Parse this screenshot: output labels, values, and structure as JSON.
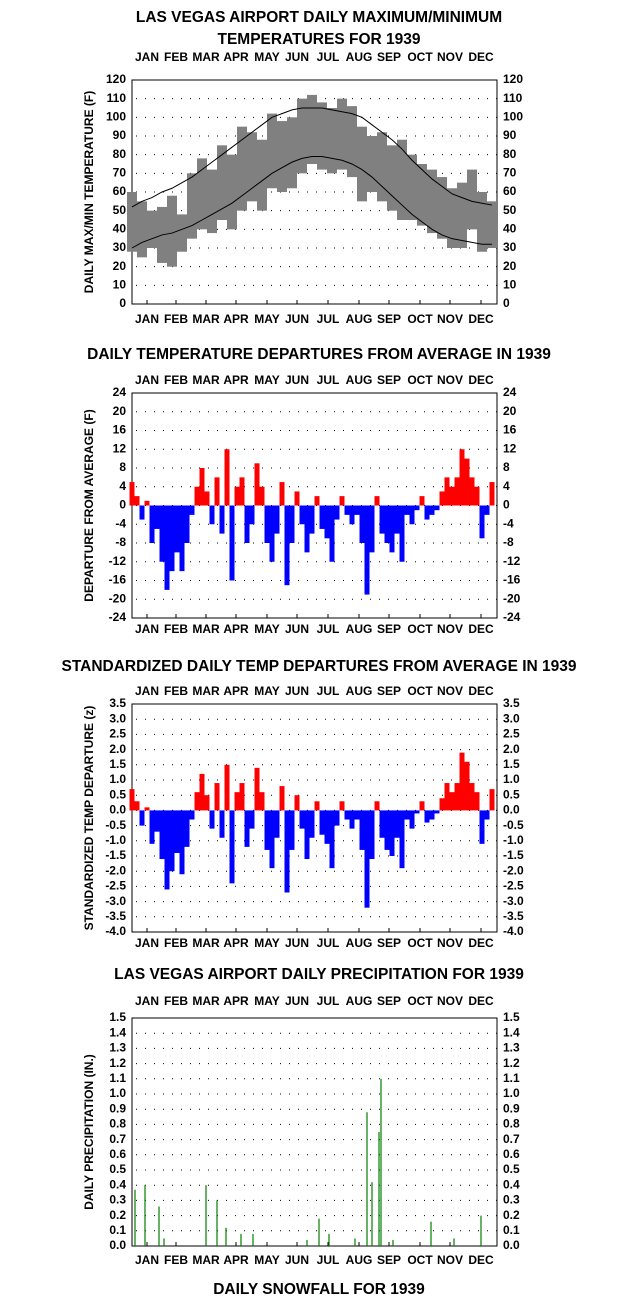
{
  "chart_data": [
    {
      "type": "range",
      "title": [
        "LAS VEGAS AIRPORT DAILY MAXIMUM/MINIMUM",
        "TEMPERATURES FOR 1939"
      ],
      "ylabel": "DAILY MAX/MIN TEMPERATURE (F)",
      "xlim": [
        1,
        366
      ],
      "xticks": [
        {
          "value": 16,
          "label": "JAN"
        },
        {
          "value": 45,
          "label": "FEB"
        },
        {
          "value": 75,
          "label": "MAR"
        },
        {
          "value": 105,
          "label": "APR"
        },
        {
          "value": 136,
          "label": "MAY"
        },
        {
          "value": 166,
          "label": "JUN"
        },
        {
          "value": 197,
          "label": "JUL"
        },
        {
          "value": 228,
          "label": "AUG"
        },
        {
          "value": 258,
          "label": "SEP"
        },
        {
          "value": 289,
          "label": "OCT"
        },
        {
          "value": 319,
          "label": "NOV"
        },
        {
          "value": 350,
          "label": "DEC"
        }
      ],
      "ylim": [
        0,
        120
      ],
      "yticks": [
        0,
        10,
        20,
        30,
        40,
        50,
        60,
        70,
        80,
        90,
        100,
        110,
        120
      ],
      "grid": true,
      "x": [
        1,
        11,
        21,
        31,
        41,
        51,
        61,
        71,
        81,
        91,
        101,
        111,
        121,
        131,
        141,
        151,
        161,
        171,
        181,
        191,
        201,
        211,
        221,
        231,
        241,
        251,
        261,
        271,
        281,
        291,
        301,
        311,
        321,
        331,
        341,
        351,
        361
      ],
      "series": [
        {
          "color": "#808080",
          "values": [
            60,
            55,
            50,
            52,
            58,
            48,
            70,
            78,
            72,
            85,
            80,
            95,
            92,
            88,
            102,
            98,
            100,
            110,
            112,
            108,
            105,
            110,
            106,
            95,
            90,
            92,
            85,
            88,
            80,
            75,
            72,
            68,
            62,
            65,
            72,
            60,
            55
          ]
        },
        {
          "color": "#808080",
          "values": [
            28,
            25,
            30,
            22,
            20,
            28,
            35,
            40,
            38,
            45,
            40,
            50,
            55,
            50,
            62,
            60,
            62,
            70,
            75,
            72,
            70,
            72,
            68,
            55,
            60,
            55,
            50,
            45,
            45,
            42,
            38,
            35,
            30,
            30,
            40,
            28,
            30
          ]
        }
      ],
      "normals": [
        {
          "color": "#000000",
          "values": [
            52,
            55,
            57,
            60,
            62,
            65,
            68,
            72,
            76,
            80,
            84,
            88,
            92,
            96,
            100,
            102,
            104,
            105,
            105,
            105,
            104,
            103,
            102,
            100,
            96,
            92,
            88,
            83,
            77,
            72,
            67,
            63,
            59,
            57,
            55,
            54,
            53
          ]
        },
        {
          "color": "#000000",
          "values": [
            30,
            33,
            35,
            37,
            38,
            40,
            42,
            45,
            48,
            51,
            54,
            58,
            62,
            66,
            70,
            73,
            76,
            78,
            79,
            79,
            78,
            77,
            75,
            72,
            68,
            63,
            58,
            53,
            48,
            44,
            40,
            37,
            35,
            34,
            33,
            32,
            32
          ]
        }
      ]
    },
    {
      "type": "bar",
      "title": "DAILY TEMPERATURE DEPARTURES FROM AVERAGE IN 1939",
      "ylabel": "DEPARTURE FROM AVERAGE (F)",
      "xlim": [
        1,
        366
      ],
      "xticks": [
        {
          "value": 16,
          "label": "JAN"
        },
        {
          "value": 45,
          "label": "FEB"
        },
        {
          "value": 75,
          "label": "MAR"
        },
        {
          "value": 105,
          "label": "APR"
        },
        {
          "value": 136,
          "label": "MAY"
        },
        {
          "value": 166,
          "label": "JUN"
        },
        {
          "value": 197,
          "label": "JUL"
        },
        {
          "value": 228,
          "label": "AUG"
        },
        {
          "value": 258,
          "label": "SEP"
        },
        {
          "value": 289,
          "label": "OCT"
        },
        {
          "value": 319,
          "label": "NOV"
        },
        {
          "value": 350,
          "label": "DEC"
        }
      ],
      "ylim": [
        -24,
        24
      ],
      "yticks": [
        -24,
        -20,
        -16,
        -12,
        -8,
        -4,
        0,
        4,
        8,
        12,
        16,
        20,
        24
      ],
      "grid": true,
      "color": "#ff0000",
      "neg_color": "#0000ff",
      "x": [
        1,
        6,
        11,
        16,
        21,
        26,
        31,
        36,
        41,
        46,
        51,
        56,
        61,
        66,
        71,
        76,
        81,
        86,
        91,
        96,
        101,
        106,
        111,
        116,
        121,
        126,
        131,
        136,
        141,
        146,
        151,
        156,
        161,
        166,
        171,
        176,
        181,
        186,
        191,
        196,
        201,
        206,
        211,
        216,
        221,
        226,
        231,
        236,
        241,
        246,
        251,
        256,
        261,
        266,
        271,
        276,
        281,
        286,
        291,
        296,
        301,
        306,
        311,
        316,
        321,
        326,
        331,
        336,
        341,
        346,
        351,
        356,
        361
      ],
      "values": [
        5,
        2,
        -3,
        1,
        -8,
        -5,
        -12,
        -18,
        -14,
        -10,
        -14,
        -8,
        -2,
        4,
        8,
        3,
        -4,
        6,
        -6,
        12,
        -16,
        4,
        6,
        -8,
        -4,
        9,
        4,
        -8,
        -12,
        -6,
        5,
        -17,
        -8,
        3,
        -4,
        -10,
        -6,
        2,
        -5,
        -7,
        -12,
        -3,
        2,
        -2,
        -4,
        -2,
        -8,
        -19,
        -10,
        2,
        -6,
        -8,
        -10,
        -6,
        -12,
        -2,
        -4,
        -1,
        2,
        -3,
        -2,
        -1,
        3,
        6,
        4,
        6,
        12,
        10,
        6,
        4,
        -7,
        -2,
        5
      ]
    },
    {
      "type": "bar",
      "title": "STANDARDIZED DAILY TEMP DEPARTURES FROM AVERAGE IN 1939",
      "ylabel": "STANDARDIZED TEMP DEPARTURE (z)",
      "xlim": [
        1,
        366
      ],
      "xticks": [
        {
          "value": 16,
          "label": "JAN"
        },
        {
          "value": 45,
          "label": "FEB"
        },
        {
          "value": 75,
          "label": "MAR"
        },
        {
          "value": 105,
          "label": "APR"
        },
        {
          "value": 136,
          "label": "MAY"
        },
        {
          "value": 166,
          "label": "JUN"
        },
        {
          "value": 197,
          "label": "JUL"
        },
        {
          "value": 228,
          "label": "AUG"
        },
        {
          "value": 258,
          "label": "SEP"
        },
        {
          "value": 289,
          "label": "OCT"
        },
        {
          "value": 319,
          "label": "NOV"
        },
        {
          "value": 350,
          "label": "DEC"
        }
      ],
      "ylim": [
        -4,
        3.5
      ],
      "yticks": [
        {
          "value": -4,
          "label": "-4.0"
        },
        -3.5,
        {
          "value": -3,
          "label": "-3.0"
        },
        -2.5,
        {
          "value": -2,
          "label": "-2.0"
        },
        -1.5,
        {
          "value": -1,
          "label": "-1.0"
        },
        -0.5,
        {
          "value": 0,
          "label": "0.0"
        },
        0.5,
        {
          "value": 1,
          "label": "1.0"
        },
        1.5,
        {
          "value": 2,
          "label": "2.0"
        },
        2.5,
        {
          "value": 3,
          "label": "3.0"
        },
        3.5
      ],
      "grid": true,
      "color": "#ff0000",
      "neg_color": "#0000ff",
      "x": [
        1,
        6,
        11,
        16,
        21,
        26,
        31,
        36,
        41,
        46,
        51,
        56,
        61,
        66,
        71,
        76,
        81,
        86,
        91,
        96,
        101,
        106,
        111,
        116,
        121,
        126,
        131,
        136,
        141,
        146,
        151,
        156,
        161,
        166,
        171,
        176,
        181,
        186,
        191,
        196,
        201,
        206,
        211,
        216,
        221,
        226,
        231,
        236,
        241,
        246,
        251,
        256,
        261,
        266,
        271,
        276,
        281,
        286,
        291,
        296,
        301,
        306,
        311,
        316,
        321,
        326,
        331,
        336,
        341,
        346,
        351,
        356,
        361
      ],
      "values": [
        0.7,
        0.3,
        -0.5,
        0.1,
        -1.1,
        -0.7,
        -1.6,
        -2.6,
        -2.0,
        -1.4,
        -2.1,
        -1.2,
        -0.3,
        0.6,
        1.2,
        0.5,
        -0.6,
        0.9,
        -0.9,
        1.5,
        -2.4,
        0.6,
        0.9,
        -1.2,
        -0.6,
        1.4,
        0.6,
        -1.3,
        -1.9,
        -0.9,
        0.8,
        -2.7,
        -1.3,
        0.5,
        -0.6,
        -1.6,
        -0.9,
        0.3,
        -0.8,
        -1.1,
        -1.9,
        -0.5,
        0.3,
        -0.3,
        -0.6,
        -0.3,
        -1.3,
        -3.2,
        -1.6,
        0.3,
        -0.9,
        -1.3,
        -1.5,
        -0.9,
        -1.9,
        -0.3,
        -0.6,
        -0.1,
        0.3,
        -0.4,
        -0.3,
        -0.1,
        0.4,
        0.9,
        0.6,
        0.9,
        1.9,
        1.6,
        0.9,
        0.6,
        -1.1,
        -0.3,
        0.7
      ]
    },
    {
      "type": "bar",
      "title": "LAS VEGAS  AIRPORT DAILY PRECIPITATION FOR 1939",
      "ylabel": "DAILY PRECIPITATION (IN.)",
      "xlim": [
        1,
        366
      ],
      "xticks": [
        {
          "value": 16,
          "label": "JAN"
        },
        {
          "value": 45,
          "label": "FEB"
        },
        {
          "value": 75,
          "label": "MAR"
        },
        {
          "value": 105,
          "label": "APR"
        },
        {
          "value": 136,
          "label": "MAY"
        },
        {
          "value": 166,
          "label": "JUN"
        },
        {
          "value": 197,
          "label": "JUL"
        },
        {
          "value": 228,
          "label": "AUG"
        },
        {
          "value": 258,
          "label": "SEP"
        },
        {
          "value": 289,
          "label": "OCT"
        },
        {
          "value": 319,
          "label": "NOV"
        },
        {
          "value": 350,
          "label": "DEC"
        }
      ],
      "ylim": [
        0,
        1.5
      ],
      "yticks": [
        {
          "value": 0,
          "label": "0.0"
        },
        0.1,
        0.2,
        0.3,
        0.4,
        0.5,
        0.6,
        0.7,
        0.8,
        0.9,
        {
          "value": 1,
          "label": "1.0"
        },
        1.1,
        1.2,
        1.3,
        1.4,
        1.5
      ],
      "grid": true,
      "color": "#008000",
      "x": [
        4,
        14,
        28,
        33,
        75,
        86,
        95,
        110,
        122,
        176,
        188,
        198,
        224,
        236,
        241,
        248,
        250,
        262,
        300,
        323,
        350
      ],
      "values": [
        0.37,
        0.4,
        0.26,
        0.05,
        0.4,
        0.3,
        0.12,
        0.08,
        0.08,
        0.04,
        0.18,
        0.08,
        0.05,
        0.88,
        0.42,
        0.75,
        1.1,
        0.04,
        0.16,
        0.05,
        0.2
      ]
    },
    {
      "type": "bar",
      "title": "DAILY SNOWFALL FOR 1939"
    }
  ]
}
